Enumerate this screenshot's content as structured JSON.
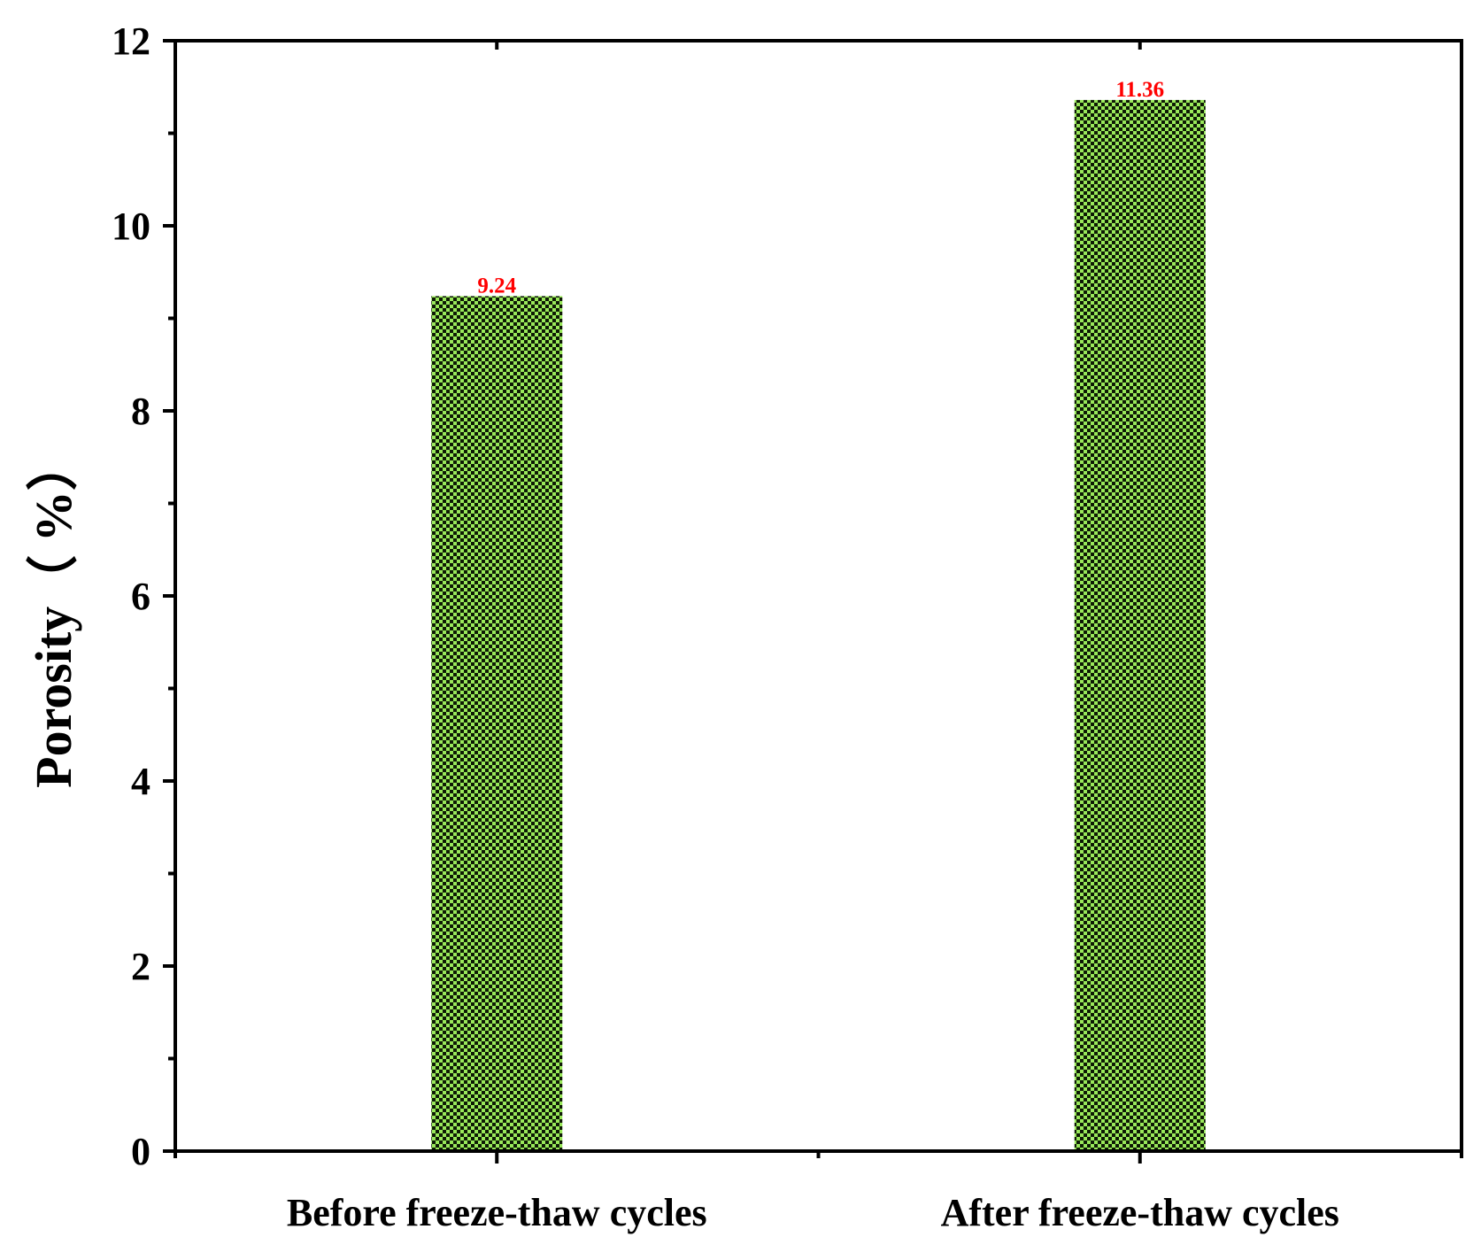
{
  "chart_data": {
    "type": "bar",
    "title": "",
    "xlabel": "",
    "ylabel": "Porosity（ %）",
    "categories": [
      "Before freeze-thaw cycles",
      "After freeze-thaw cycles"
    ],
    "values": [
      9.24,
      11.36
    ],
    "data_labels": [
      "9.24",
      "11.36"
    ],
    "ylim": [
      0,
      12
    ],
    "y_major_ticks": [
      0,
      2,
      4,
      6,
      8,
      10,
      12
    ],
    "y_tick_labels": [
      "0",
      "2",
      "4",
      "6",
      "8",
      "10",
      "12"
    ],
    "y_minor_step": 1,
    "grid": false,
    "legend": "none",
    "bar_fill": "checkered pattern",
    "colors": {
      "bar_light": "#99e85a",
      "bar_dark": "#0e1a05",
      "data_label": "#ff0000",
      "axis": "#000000",
      "background": "#ffffff"
    }
  }
}
